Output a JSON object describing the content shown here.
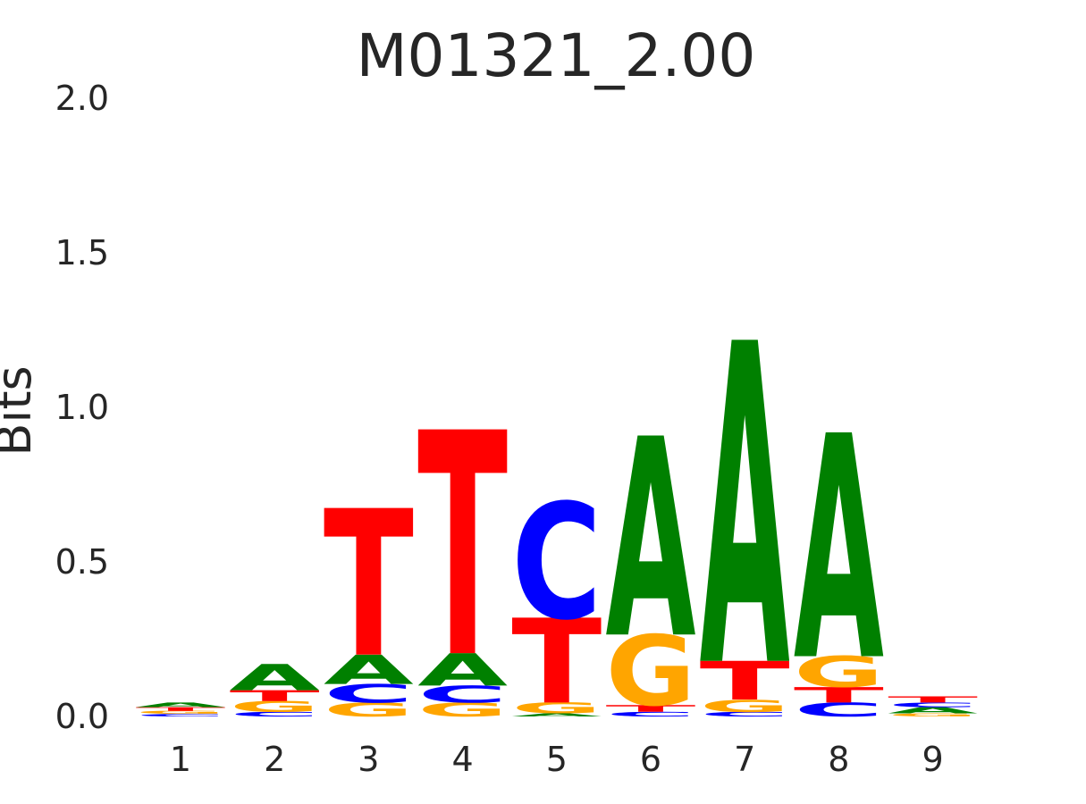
{
  "chart_data": {
    "type": "sequence-logo",
    "title": "M01321_2.00",
    "xlabel": "",
    "ylabel": "Bits",
    "ylim": [
      0,
      2
    ],
    "yticks": [
      "0.0",
      "0.5",
      "1.0",
      "1.5",
      "2.0"
    ],
    "ytick_values": [
      0,
      0.5,
      1.0,
      1.5,
      2.0
    ],
    "grid": false,
    "colors": {
      "A": "#008000",
      "C": "#0000ff",
      "G": "#ffa500",
      "T": "#ff0000"
    },
    "positions": [
      {
        "label": "1",
        "stack": [
          {
            "letter": "C",
            "height": 0.008
          },
          {
            "letter": "G",
            "height": 0.01
          },
          {
            "letter": "T",
            "height": 0.012
          },
          {
            "letter": "A",
            "height": 0.015
          }
        ]
      },
      {
        "label": "2",
        "stack": [
          {
            "letter": "C",
            "height": 0.015
          },
          {
            "letter": "G",
            "height": 0.035
          },
          {
            "letter": "T",
            "height": 0.035
          },
          {
            "letter": "A",
            "height": 0.085
          }
        ]
      },
      {
        "label": "3",
        "stack": [
          {
            "letter": "G",
            "height": 0.045
          },
          {
            "letter": "C",
            "height": 0.06
          },
          {
            "letter": "A",
            "height": 0.095
          },
          {
            "letter": "T",
            "height": 0.475
          }
        ]
      },
      {
        "label": "4",
        "stack": [
          {
            "letter": "G",
            "height": 0.045
          },
          {
            "letter": "C",
            "height": 0.055
          },
          {
            "letter": "A",
            "height": 0.105
          },
          {
            "letter": "T",
            "height": 0.725
          }
        ]
      },
      {
        "label": "5",
        "stack": [
          {
            "letter": "A",
            "height": 0.01
          },
          {
            "letter": "G",
            "height": 0.035
          },
          {
            "letter": "T",
            "height": 0.275
          },
          {
            "letter": "C",
            "height": 0.375
          }
        ]
      },
      {
        "label": "6",
        "stack": [
          {
            "letter": "C",
            "height": 0.015
          },
          {
            "letter": "T",
            "height": 0.022
          },
          {
            "letter": "G",
            "height": 0.228
          },
          {
            "letter": "A",
            "height": 0.645
          }
        ]
      },
      {
        "label": "7",
        "stack": [
          {
            "letter": "C",
            "height": 0.015
          },
          {
            "letter": "G",
            "height": 0.04
          },
          {
            "letter": "T",
            "height": 0.125
          },
          {
            "letter": "A",
            "height": 1.04
          }
        ]
      },
      {
        "label": "8",
        "stack": [
          {
            "letter": "C",
            "height": 0.045
          },
          {
            "letter": "T",
            "height": 0.05
          },
          {
            "letter": "G",
            "height": 0.1
          },
          {
            "letter": "A",
            "height": 0.725
          }
        ]
      },
      {
        "label": "9",
        "stack": [
          {
            "letter": "G",
            "height": 0.01
          },
          {
            "letter": "A",
            "height": 0.02
          },
          {
            "letter": "C",
            "height": 0.015
          },
          {
            "letter": "T",
            "height": 0.02
          }
        ]
      }
    ]
  }
}
